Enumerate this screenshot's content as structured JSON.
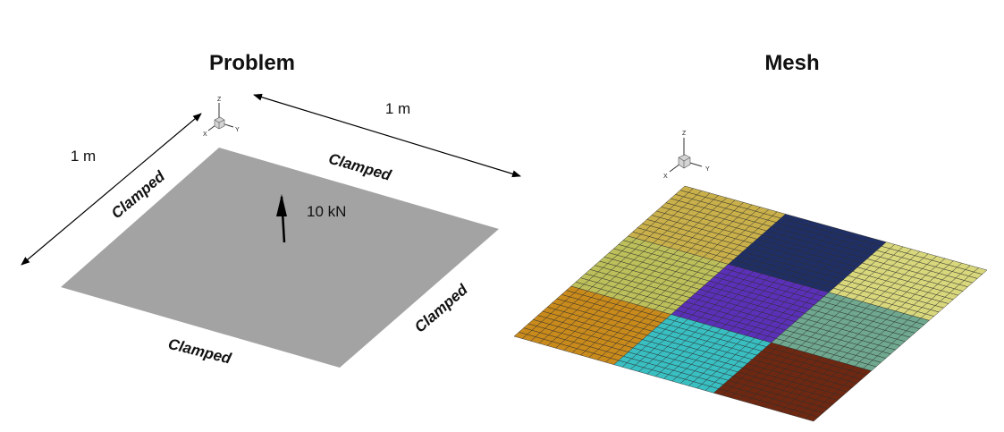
{
  "panels": {
    "problem": {
      "title": "Problem"
    },
    "mesh": {
      "title": "Mesh"
    }
  },
  "dimensions": {
    "side_a": "1 m",
    "side_b": "1 m"
  },
  "boundary_conditions": {
    "left": "Clamped",
    "top": "Clamped",
    "right": "Clamped",
    "bottom": "Clamped"
  },
  "load": {
    "label": "10 kN"
  },
  "triad_labels": {
    "z": "Z",
    "x": "X",
    "y": "Y"
  },
  "mesh": {
    "blocks": 3,
    "divisions_per_block": 12,
    "block_colors": [
      [
        "#c9b04a",
        "#1f2f66",
        "#d8d77c"
      ],
      [
        "#bcbf5a",
        "#5b30b8",
        "#6fa88f"
      ],
      [
        "#c98a1c",
        "#39bfc2",
        "#6e2811"
      ]
    ]
  },
  "colors": {
    "plate": "#a3a3a3",
    "mesh_line": "#2a2a2a",
    "arrow": "#000000"
  }
}
